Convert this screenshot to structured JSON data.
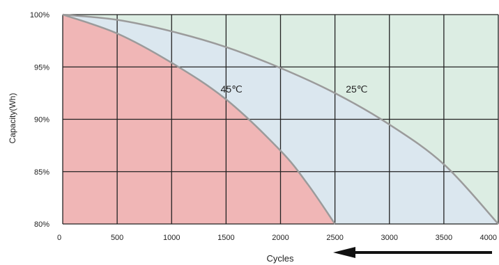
{
  "chart_data": {
    "type": "area",
    "title": "",
    "xlabel": "Cycles",
    "ylabel": "Capacity(Wh)",
    "xlim": [
      0,
      4000
    ],
    "ylim": [
      80,
      100
    ],
    "x_ticks": [
      "0",
      "500",
      "1000",
      "1500",
      "2000",
      "2500",
      "3000",
      "3500",
      "4000"
    ],
    "y_ticks": [
      "100%",
      "95%",
      "90%",
      "85%",
      "80%"
    ],
    "grid": true,
    "series": [
      {
        "name": "45℃",
        "color": "#f0b6b6",
        "x": [
          0,
          500,
          1000,
          1500,
          2000,
          2250,
          2500
        ],
        "y": [
          100,
          98.2,
          95.4,
          91.9,
          87.0,
          83.8,
          80
        ]
      },
      {
        "name": "25℃",
        "color": "#dbe7ef",
        "x": [
          0,
          500,
          1000,
          1500,
          2000,
          2500,
          3000,
          3500,
          4000
        ],
        "y": [
          100,
          99.5,
          98.4,
          96.9,
          94.9,
          92.5,
          89.5,
          85.7,
          80
        ]
      }
    ],
    "background_color": "#dcede3",
    "annotations": [
      {
        "text": "45℃",
        "x": 1550,
        "y": 92.9
      },
      {
        "text": "25℃",
        "x": 2700,
        "y": 92.9
      }
    ],
    "arrow": {
      "direction": "left",
      "color": "#111111"
    }
  }
}
